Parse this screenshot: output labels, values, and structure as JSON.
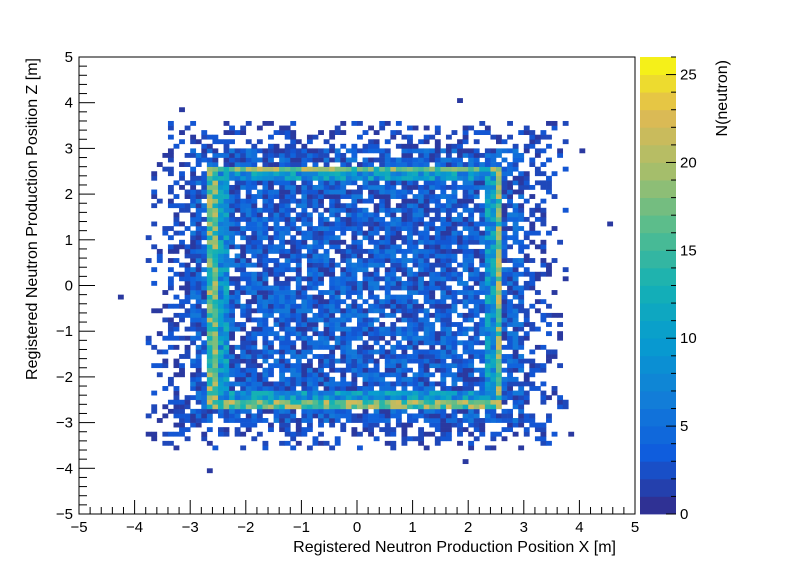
{
  "chart_data": {
    "type": "heatmap",
    "title": "",
    "xlabel": "Registered Neutron Production Position X [m]",
    "ylabel": "Registered Neutron Production Position Z [m]",
    "zlabel": "N(neutron)",
    "xlim": [
      -5,
      5
    ],
    "ylim": [
      -5,
      5
    ],
    "zlim": [
      0,
      26
    ],
    "bins": {
      "x": 100,
      "y": 100
    },
    "x_ticks": [
      "−5",
      "−4",
      "−3",
      "−2",
      "−1",
      "0",
      "1",
      "2",
      "3",
      "4",
      "5"
    ],
    "y_ticks": [
      "−5",
      "−4",
      "−3",
      "−2",
      "−1",
      "0",
      "1",
      "2",
      "3",
      "4",
      "5"
    ],
    "z_ticks": [
      "0",
      "5",
      "10",
      "15",
      "20",
      "25"
    ],
    "distribution": {
      "core_region": {
        "x": [
          -3.0,
          3.0
        ],
        "z": [
          -3.0,
          3.0
        ],
        "typical_count": [
          1,
          6
        ]
      },
      "ring": {
        "x": [
          -2.6,
          2.6
        ],
        "z": [
          -2.6,
          2.6
        ],
        "peak_count": 22,
        "band_count": 12
      },
      "halo_region": {
        "x": [
          -3.8,
          3.8
        ],
        "z": [
          -3.6,
          3.6
        ],
        "typical_count": [
          1,
          3
        ]
      },
      "outliers": [
        {
          "x": -4.2,
          "z": -0.3,
          "n": 1
        },
        {
          "x": -2.7,
          "z": -4.1,
          "n": 1
        },
        {
          "x": 1.9,
          "z": -3.9,
          "n": 1
        },
        {
          "x": 4.5,
          "z": 1.3,
          "n": 1
        },
        {
          "x": 1.8,
          "z": 4.1,
          "n": 1
        },
        {
          "x": -3.2,
          "z": 3.8,
          "n": 1
        },
        {
          "x": 4.1,
          "z": 2.9,
          "n": 1
        },
        {
          "x": 3.8,
          "z": -3.3,
          "n": 1
        }
      ]
    },
    "palette": "kBird",
    "grid": false,
    "legend": "colorbar-right"
  }
}
